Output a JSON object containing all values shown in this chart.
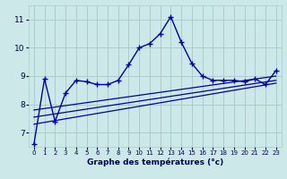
{
  "xlabel": "Graphe des températures (°c)",
  "background_color": "#cce8e8",
  "grid_color": "#aacccc",
  "line_color": "#0000aa",
  "xlim": [
    -0.5,
    23.5
  ],
  "ylim": [
    6.5,
    11.5
  ],
  "yticks": [
    7,
    8,
    9,
    10,
    11
  ],
  "xticks": [
    0,
    1,
    2,
    3,
    4,
    5,
    6,
    7,
    8,
    9,
    10,
    11,
    12,
    13,
    14,
    15,
    16,
    17,
    18,
    19,
    20,
    21,
    22,
    23
  ],
  "main_x": [
    0,
    1,
    2,
    3,
    4,
    5,
    6,
    7,
    8,
    9,
    10,
    11,
    12,
    13,
    14,
    15,
    16,
    17,
    18,
    19,
    20,
    21,
    22,
    23
  ],
  "main_y": [
    6.6,
    8.9,
    7.4,
    8.4,
    8.85,
    8.8,
    8.7,
    8.7,
    8.85,
    9.4,
    10.0,
    10.15,
    10.5,
    11.1,
    10.2,
    9.45,
    9.0,
    8.85,
    8.85,
    8.85,
    8.8,
    8.9,
    8.7,
    9.2
  ],
  "trend1_x": [
    0,
    23
  ],
  "trend1_y": [
    7.3,
    8.75
  ],
  "trend2_x": [
    0,
    23
  ],
  "trend2_y": [
    7.55,
    8.85
  ],
  "trend3_x": [
    0,
    23
  ],
  "trend3_y": [
    7.8,
    9.0
  ],
  "xlabel_color": "#000066",
  "xlabel_fontsize": 6.5,
  "tick_fontsize_x": 5.0,
  "tick_fontsize_y": 6.5
}
